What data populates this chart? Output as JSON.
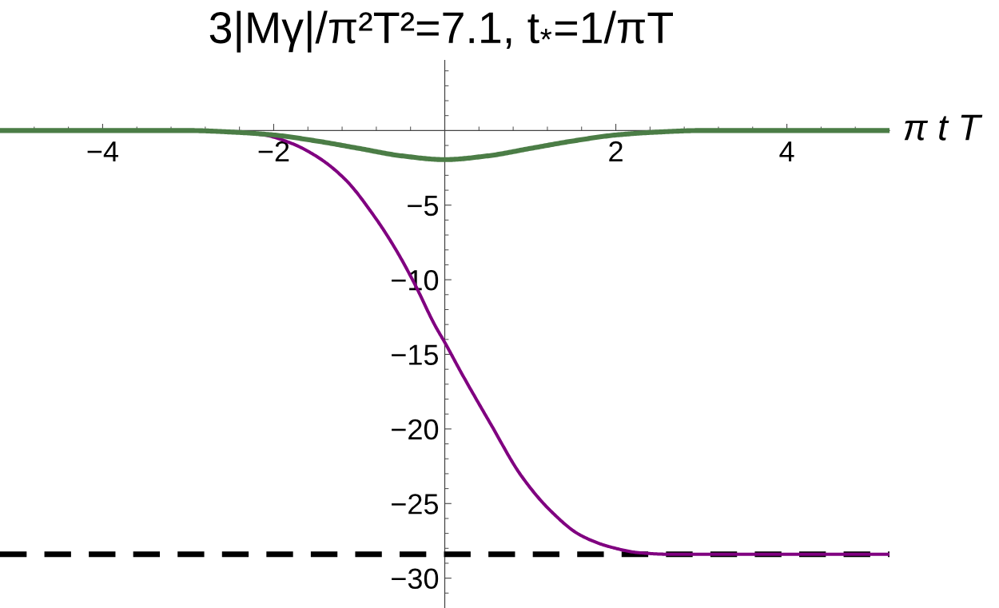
{
  "chart_data": {
    "type": "line",
    "title": "3|Mγ|/π²T²=7.1, t$_{*}$=1/πT",
    "xlabel": "π t T",
    "xlim": [
      -5.2,
      5.2
    ],
    "ylim": [
      -32,
      4.7
    ],
    "xticks": [
      -4,
      -2,
      2,
      4,
      {
        "value": -4.8,
        "label": null
      },
      {
        "value": -4.4,
        "label": null
      },
      {
        "value": -3.6,
        "label": null
      },
      {
        "value": -3.2,
        "label": null
      },
      {
        "value": -2.8,
        "label": null
      },
      {
        "value": -2.4,
        "label": null
      },
      {
        "value": -1.6,
        "label": null
      },
      {
        "value": -1.2,
        "label": null
      },
      {
        "value": -0.8,
        "label": null
      },
      {
        "value": -0.4,
        "label": null
      },
      {
        "value": 0.4,
        "label": null
      },
      {
        "value": 0.8,
        "label": null
      },
      {
        "value": 1.2,
        "label": null
      },
      {
        "value": 1.6,
        "label": null
      },
      {
        "value": 2.4,
        "label": null
      },
      {
        "value": 2.8,
        "label": null
      },
      {
        "value": 3.2,
        "label": null
      },
      {
        "value": 3.6,
        "label": null
      },
      {
        "value": 4.4,
        "label": null
      },
      {
        "value": 4.8,
        "label": null
      }
    ],
    "yticks": [
      -5,
      -10,
      -15,
      -20,
      -25,
      -30,
      {
        "value": 4,
        "label": null
      },
      {
        "value": 3,
        "label": null
      },
      {
        "value": 2,
        "label": null
      },
      {
        "value": 1,
        "label": null
      },
      {
        "value": -1,
        "label": null
      },
      {
        "value": -2,
        "label": null
      },
      {
        "value": -3,
        "label": null
      },
      {
        "value": -4,
        "label": null
      },
      {
        "value": -6,
        "label": null
      },
      {
        "value": -7,
        "label": null
      },
      {
        "value": -8,
        "label": null
      },
      {
        "value": -9,
        "label": null
      },
      {
        "value": -11,
        "label": null
      },
      {
        "value": -12,
        "label": null
      },
      {
        "value": -13,
        "label": null
      },
      {
        "value": -14,
        "label": null
      },
      {
        "value": -16,
        "label": null
      },
      {
        "value": -17,
        "label": null
      },
      {
        "value": -18,
        "label": null
      },
      {
        "value": -19,
        "label": null
      },
      {
        "value": -21,
        "label": null
      },
      {
        "value": -22,
        "label": null
      },
      {
        "value": -23,
        "label": null
      },
      {
        "value": -24,
        "label": null
      },
      {
        "value": -26,
        "label": null
      },
      {
        "value": -27,
        "label": null
      },
      {
        "value": -28,
        "label": null
      },
      {
        "value": -29,
        "label": null
      },
      {
        "value": -31,
        "label": null
      }
    ],
    "ref_lines": [
      {
        "axis": "y",
        "value": -28.4,
        "color": "#000000",
        "line_style": "dashed"
      }
    ],
    "series": [
      {
        "color": "#800080",
        "x": [
          -2.56,
          -2.12,
          -1.8,
          -1.48,
          -1.16,
          -0.83,
          -0.58,
          -0.35,
          -0.12,
          0.01,
          0.19,
          0.54,
          0.89,
          1.24,
          1.58,
          1.93,
          2.28,
          2.63,
          3.5,
          5.2
        ],
        "values": [
          -0.07,
          -0.29,
          -0.84,
          -1.8,
          -3.3,
          -5.7,
          -7.9,
          -10.3,
          -13.0,
          -14.3,
          -16.2,
          -19.7,
          -23.1,
          -25.5,
          -27.1,
          -27.9,
          -28.3,
          -28.4,
          -28.4,
          -28.4
        ]
      },
      {
        "color": "#4b7d46",
        "x": [
          -5.2,
          -3.0,
          -2.5,
          -2.0,
          -1.5,
          -1.0,
          -0.5,
          0,
          0.5,
          1.0,
          1.5,
          2.0,
          2.5,
          3.0,
          5.2
        ],
        "values": [
          0,
          0,
          -0.1,
          -0.3,
          -0.7,
          -1.2,
          -1.7,
          -1.95,
          -1.7,
          -1.2,
          -0.7,
          -0.3,
          -0.1,
          0,
          0
        ]
      }
    ]
  }
}
